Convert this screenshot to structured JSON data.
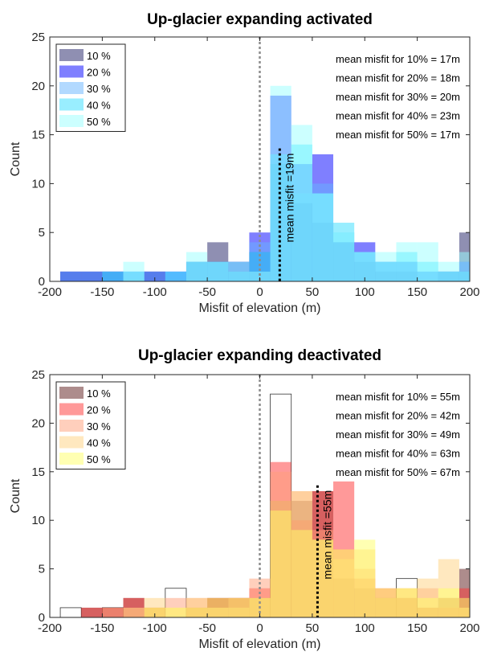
{
  "chart_data": [
    {
      "type": "histogram",
      "title": "Up-glacier expanding activated",
      "xlabel": "Misfit of elevation (m)",
      "ylabel": "Count",
      "xlim": [
        -200,
        200
      ],
      "ylim": [
        0,
        25
      ],
      "xticks": [
        "-200",
        "-150",
        "-100",
        "-50",
        "0",
        "50",
        "100",
        "150",
        "200"
      ],
      "yticks": [
        "0",
        "5",
        "10",
        "15",
        "20",
        "25"
      ],
      "bin_edges": [
        -190,
        -170,
        -150,
        -130,
        -110,
        -90,
        -70,
        -50,
        -30,
        -10,
        10,
        30,
        50,
        70,
        90,
        110,
        130,
        150,
        170,
        190,
        210
      ],
      "series": [
        {
          "name": "10 %",
          "color": "#1f1f66",
          "values": [
            1,
            1,
            1,
            0,
            1,
            0,
            2,
            4,
            2,
            3,
            12,
            8,
            6,
            4,
            2,
            1,
            1,
            0,
            1,
            5
          ]
        },
        {
          "name": "20 %",
          "color": "#0000ff",
          "values": [
            1,
            1,
            1,
            1,
            1,
            1,
            2,
            2,
            2,
            5,
            19,
            12,
            13,
            4,
            4,
            2,
            2,
            1,
            1,
            2
          ]
        },
        {
          "name": "30 %",
          "color": "#66b3ff",
          "values": [
            1,
            1,
            1,
            1,
            1,
            1,
            2,
            2,
            2,
            4,
            12,
            9,
            10,
            5,
            3,
            2,
            2,
            1,
            1,
            2
          ]
        },
        {
          "name": "40 %",
          "color": "#33ddff",
          "values": [
            0,
            0,
            1,
            1,
            0,
            1,
            2,
            2,
            1,
            3,
            13,
            14,
            9,
            6,
            3,
            2,
            3,
            2,
            1,
            1
          ]
        },
        {
          "name": "50 %",
          "color": "#99ffff",
          "values": [
            0,
            0,
            0,
            2,
            0,
            0,
            3,
            2,
            2,
            1,
            20,
            16,
            9,
            5,
            3,
            3,
            4,
            4,
            2,
            3
          ]
        }
      ],
      "zero_line": 0,
      "mean_line": 19,
      "mean_label": "mean misfit =19m",
      "annotations": [
        "mean misfit for 10% = 17m",
        "mean misfit for 20% = 18m",
        "mean misfit for 30% = 20m",
        "mean misfit for 40% = 23m",
        "mean misfit for 50% = 17m"
      ],
      "legend_position": "top-left",
      "grid": false
    },
    {
      "type": "histogram",
      "title": "Up-glacier expanding deactivated",
      "xlabel": "Misfit of elevation (m)",
      "ylabel": "Count",
      "xlim": [
        -200,
        200
      ],
      "ylim": [
        0,
        25
      ],
      "xticks": [
        "-200",
        "-150",
        "-100",
        "-50",
        "0",
        "50",
        "100",
        "150",
        "200"
      ],
      "yticks": [
        "0",
        "5",
        "10",
        "15",
        "20",
        "25"
      ],
      "bin_edges": [
        -190,
        -170,
        -150,
        -130,
        -110,
        -90,
        -70,
        -50,
        -30,
        -10,
        10,
        30,
        50,
        70,
        90,
        110,
        130,
        150,
        170,
        190,
        210
      ],
      "series": [
        {
          "name": "10 %",
          "color": "#5c1a1a",
          "values": [
            0,
            1,
            1,
            2,
            1,
            0,
            1,
            2,
            2,
            2,
            12,
            12,
            13,
            4,
            3,
            2,
            2,
            1,
            2,
            5
          ]
        },
        {
          "name": "20 %",
          "color": "#ff3333",
          "values": [
            0,
            1,
            1,
            2,
            1,
            0,
            1,
            2,
            2,
            3,
            16,
            10,
            13,
            14,
            4,
            3,
            2,
            1,
            1,
            3
          ]
        },
        {
          "name": "30 %",
          "color": "#ffa07a",
          "values": [
            0,
            0,
            1,
            1,
            1,
            2,
            2,
            1,
            2,
            4,
            15,
            13,
            9,
            7,
            5,
            2,
            3,
            3,
            2,
            1
          ]
        },
        {
          "name": "40 %",
          "color": "#ffd280",
          "values": [
            0,
            0,
            0,
            1,
            2,
            1,
            2,
            1,
            1,
            2,
            12,
            13,
            8,
            6,
            7,
            2,
            3,
            4,
            6,
            1
          ]
        },
        {
          "name": "50 %",
          "color": "#ffff66",
          "values": [
            0,
            0,
            0,
            0,
            1,
            1,
            1,
            2,
            2,
            2,
            11,
            9,
            8,
            7,
            8,
            3,
            3,
            2,
            3,
            2
          ]
        }
      ],
      "outline_values": [
        1,
        0,
        1,
        0,
        0,
        3,
        0,
        0,
        0,
        0,
        23,
        0,
        0,
        0,
        0,
        0,
        4,
        0,
        0,
        0
      ],
      "zero_line": 0,
      "mean_line": 55,
      "mean_label": "mean misfit =55m",
      "annotations": [
        "mean misfit for 10% = 55m",
        "mean misfit for 20% = 42m",
        "mean misfit for 30% = 49m",
        "mean misfit for 40% = 63m",
        "mean misfit for 50% = 67m"
      ],
      "legend_position": "top-left",
      "grid": false
    }
  ]
}
